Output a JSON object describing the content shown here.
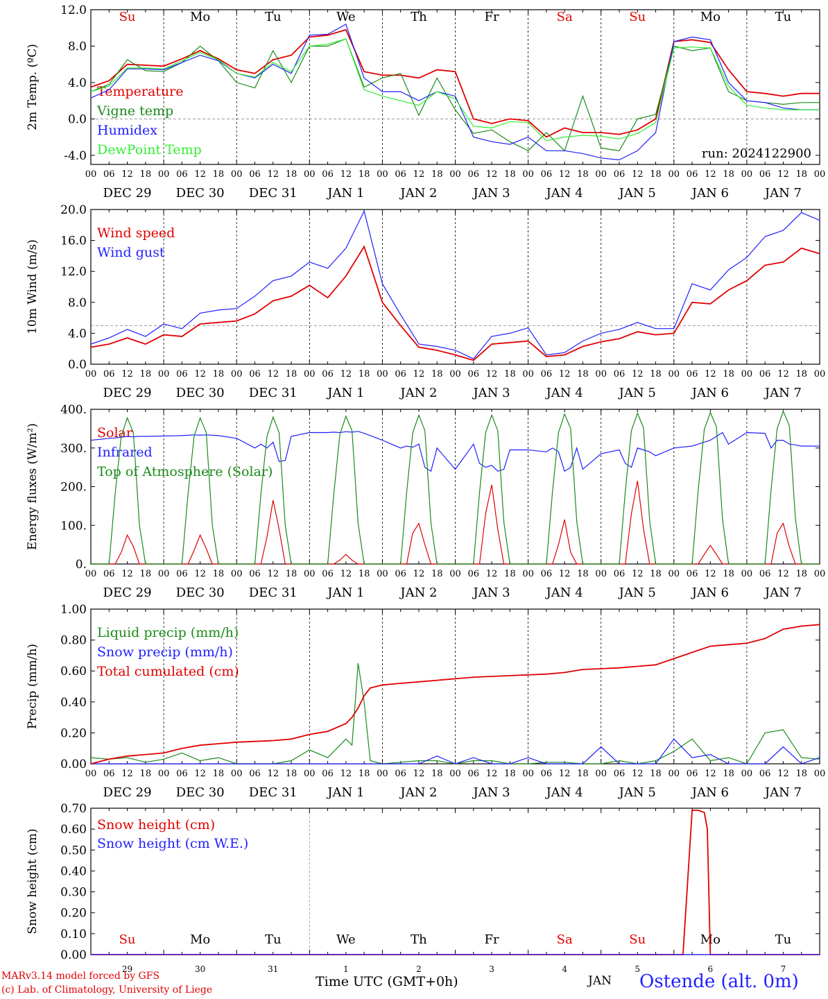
{
  "chart_data": [
    {
      "type": "line",
      "ylabel": "2m Temp. (ºC)",
      "ylim": [
        -5.0,
        12.0
      ],
      "yticks": [
        "12.0",
        "8.0",
        "4.0",
        "0.0",
        "-4.0"
      ],
      "ytick_values": [
        12,
        8,
        4,
        0,
        -4
      ],
      "reference_line": 0,
      "annotation": "run: 2024122900",
      "weekday_labels": [
        "Su",
        "Mo",
        "Tu",
        "We",
        "Th",
        "Fr",
        "Sa",
        "Su",
        "Mo",
        "Tu"
      ],
      "weekday_colors": [
        "#e00000",
        "#000000",
        "#000000",
        "#000000",
        "#000000",
        "#000000",
        "#e00000",
        "#e00000",
        "#000000",
        "#000000"
      ],
      "x_hours": [
        0,
        6,
        12,
        18,
        24,
        30,
        36,
        42,
        48,
        54,
        60,
        66,
        72,
        78,
        84,
        90,
        96,
        102,
        108,
        114,
        120,
        126,
        132,
        138,
        144,
        150,
        156,
        162,
        168,
        174,
        180,
        186,
        192,
        198,
        204,
        210,
        216,
        222,
        228,
        234,
        240
      ],
      "series": [
        {
          "name": "Temperature",
          "color": "#e00000",
          "values": [
            3.5,
            4.2,
            6.0,
            5.9,
            5.8,
            6.6,
            7.5,
            6.6,
            5.4,
            5.0,
            6.5,
            7.0,
            9.0,
            9.2,
            9.8,
            5.2,
            4.8,
            4.8,
            4.5,
            5.4,
            5.2,
            0.0,
            -0.5,
            0.0,
            -0.2,
            -2.0,
            -1.0,
            -1.5,
            -1.5,
            -1.7,
            -1.2,
            0.0,
            8.5,
            8.7,
            8.4,
            5.4,
            3.0,
            2.8,
            2.5,
            2.8,
            2.8
          ]
        },
        {
          "name": "Vigne temp",
          "color": "#1a8a1a",
          "values": [
            3.0,
            3.8,
            6.5,
            5.3,
            5.2,
            6.2,
            8.0,
            6.4,
            4.0,
            3.4,
            7.5,
            4.0,
            8.0,
            8.0,
            8.8,
            3.5,
            4.5,
            5.0,
            0.4,
            4.5,
            1.0,
            -1.6,
            -1.2,
            -2.5,
            -3.5,
            -1.5,
            -3.5,
            2.5,
            -3.2,
            -3.5,
            0.0,
            0.5,
            8.0,
            7.5,
            7.8,
            3.0,
            2.0,
            1.8,
            1.6,
            1.8,
            1.8
          ]
        },
        {
          "name": "Humidex",
          "color": "#1f1fff",
          "values": [
            2.3,
            3.2,
            5.5,
            5.5,
            5.4,
            6.2,
            7.0,
            6.4,
            5.0,
            4.5,
            6.0,
            5.0,
            9.2,
            9.3,
            10.4,
            4.5,
            3.0,
            3.0,
            2.0,
            3.0,
            2.5,
            -2.0,
            -2.5,
            -2.8,
            -2.0,
            -3.5,
            -3.5,
            -3.8,
            -4.3,
            -4.5,
            -3.5,
            -1.5,
            8.5,
            9.0,
            8.7,
            4.0,
            2.0,
            1.8,
            1.2,
            1.0,
            1.0
          ]
        },
        {
          "name": "DewPoint Temp",
          "color": "#33ee33",
          "values": [
            3.0,
            3.6,
            5.6,
            5.6,
            5.5,
            6.4,
            7.3,
            6.5,
            5.0,
            4.6,
            6.2,
            5.2,
            8.0,
            8.2,
            8.8,
            3.2,
            2.5,
            2.0,
            1.5,
            3.0,
            2.2,
            -0.8,
            -1.0,
            -0.3,
            -0.4,
            -2.4,
            -2.0,
            -1.8,
            -1.9,
            -2.2,
            -1.6,
            -0.4,
            7.8,
            7.9,
            7.8,
            3.6,
            1.5,
            1.2,
            1.0,
            1.0,
            1.0
          ]
        }
      ]
    },
    {
      "type": "line",
      "ylabel": "10m Wind (m/s)",
      "ylim": [
        0.0,
        20.0
      ],
      "yticks": [
        "20.0",
        "16.0",
        "12.0",
        "8.0",
        "4.0",
        "0.0"
      ],
      "ytick_values": [
        20,
        16,
        12,
        8,
        4,
        0
      ],
      "reference_line": 5,
      "x_hours": [
        0,
        6,
        12,
        18,
        24,
        30,
        36,
        42,
        48,
        54,
        60,
        66,
        72,
        78,
        84,
        90,
        96,
        102,
        108,
        114,
        120,
        126,
        132,
        138,
        144,
        150,
        156,
        162,
        168,
        174,
        180,
        186,
        192,
        198,
        204,
        210,
        216,
        222,
        228,
        234,
        240
      ],
      "series": [
        {
          "name": "Wind speed",
          "color": "#e00000",
          "values": [
            2.2,
            2.6,
            3.4,
            2.6,
            3.8,
            3.6,
            5.2,
            5.4,
            5.6,
            6.5,
            8.2,
            8.8,
            10.2,
            8.6,
            11.4,
            15.2,
            8.0,
            5.0,
            2.2,
            1.8,
            1.2,
            0.5,
            2.6,
            2.8,
            3.0,
            1.0,
            1.2,
            2.3,
            2.9,
            3.3,
            4.2,
            3.8,
            4.0,
            8.0,
            7.8,
            9.6,
            10.8,
            12.8,
            13.2,
            15.0,
            14.3
          ]
        },
        {
          "name": "Wind gust",
          "color": "#1f1fff",
          "values": [
            2.6,
            3.4,
            4.5,
            3.6,
            5.2,
            4.6,
            6.6,
            7.0,
            7.2,
            8.8,
            10.8,
            11.4,
            13.2,
            12.4,
            15.0,
            19.8,
            10.4,
            6.4,
            2.6,
            2.3,
            1.8,
            0.7,
            3.6,
            4.0,
            4.7,
            1.2,
            1.5,
            3.0,
            4.0,
            4.5,
            5.4,
            4.6,
            4.6,
            10.4,
            9.6,
            12.2,
            13.8,
            16.5,
            17.3,
            19.6,
            18.6
          ]
        }
      ]
    },
    {
      "type": "line",
      "ylabel": "Energy fluxes (W/m²)",
      "ylim": [
        0,
        400
      ],
      "yticks": [
        "400.",
        "300.",
        "200.",
        "100.",
        "0."
      ],
      "ytick_values": [
        400,
        300,
        200,
        100,
        0
      ],
      "x_hours": [
        0,
        6,
        8,
        10,
        12,
        14,
        16,
        18,
        24,
        30,
        32,
        34,
        36,
        38,
        40,
        42,
        48,
        54,
        56,
        58,
        60,
        62,
        64,
        66,
        72,
        78,
        80,
        82,
        84,
        86,
        88,
        90,
        96,
        102,
        104,
        106,
        108,
        110,
        112,
        114,
        120,
        126,
        128,
        130,
        132,
        134,
        136,
        138,
        144,
        150,
        152,
        154,
        156,
        158,
        160,
        162,
        168,
        174,
        176,
        178,
        180,
        182,
        184,
        186,
        192,
        198,
        200,
        202,
        204,
        206,
        208,
        210,
        216,
        222,
        224,
        226,
        228,
        230,
        232,
        234,
        240
      ],
      "series": [
        {
          "name": "Solar",
          "color": "#e00000",
          "values": [
            0,
            0,
            0,
            30,
            75,
            45,
            0,
            0,
            0,
            0,
            0,
            35,
            75,
            40,
            0,
            0,
            0,
            0,
            0,
            70,
            165,
            90,
            0,
            0,
            0,
            0,
            0,
            10,
            25,
            10,
            0,
            0,
            0,
            0,
            0,
            80,
            105,
            50,
            0,
            0,
            0,
            0,
            0,
            130,
            205,
            90,
            0,
            0,
            0,
            0,
            0,
            50,
            115,
            30,
            0,
            0,
            0,
            0,
            0,
            130,
            215,
            90,
            0,
            0,
            0,
            0,
            0,
            25,
            48,
            25,
            0,
            0,
            0,
            0,
            0,
            80,
            105,
            45,
            0,
            0,
            0
          ]
        },
        {
          "name": "Infrared",
          "color": "#1f1fff",
          "values": [
            320,
            325,
            326,
            328,
            330,
            329,
            330,
            330,
            331,
            332,
            333,
            334,
            333,
            334,
            333,
            332,
            325,
            300,
            310,
            300,
            315,
            265,
            268,
            330,
            340,
            340,
            341,
            340,
            342,
            341,
            343,
            338,
            320,
            300,
            305,
            302,
            310,
            250,
            240,
            300,
            245,
            310,
            260,
            250,
            255,
            240,
            245,
            295,
            295,
            290,
            300,
            290,
            240,
            250,
            300,
            245,
            285,
            295,
            260,
            250,
            300,
            295,
            290,
            280,
            300,
            305,
            310,
            315,
            320,
            330,
            340,
            310,
            340,
            338,
            300,
            320,
            320,
            310,
            308,
            305,
            305
          ]
        },
        {
          "name": "Top of Atmosphere (Solar)",
          "color": "#1a8a1a",
          "values": [
            0,
            0,
            180,
            330,
            378,
            340,
            100,
            0,
            0,
            0,
            180,
            330,
            378,
            340,
            100,
            0,
            0,
            0,
            180,
            330,
            380,
            340,
            100,
            0,
            0,
            0,
            180,
            335,
            382,
            345,
            105,
            0,
            0,
            0,
            185,
            340,
            385,
            345,
            105,
            0,
            0,
            0,
            185,
            340,
            385,
            345,
            108,
            0,
            0,
            0,
            185,
            340,
            388,
            350,
            110,
            0,
            0,
            0,
            188,
            345,
            390,
            352,
            112,
            0,
            0,
            0,
            190,
            348,
            392,
            355,
            115,
            0,
            0,
            0,
            192,
            350,
            395,
            358,
            118,
            0,
            0
          ]
        }
      ]
    },
    {
      "type": "line",
      "ylabel": "Precip (mm/h)",
      "ylim": [
        0.0,
        1.0
      ],
      "yticks": [
        "1.00",
        "0.80",
        "0.60",
        "0.40",
        "0.20",
        "0.00"
      ],
      "ytick_values": [
        1.0,
        0.8,
        0.6,
        0.4,
        0.2,
        0.0
      ],
      "x_hours": [
        0,
        6,
        12,
        18,
        24,
        30,
        36,
        42,
        48,
        54,
        60,
        66,
        72,
        78,
        84,
        86,
        88,
        90,
        92,
        96,
        102,
        108,
        114,
        120,
        126,
        132,
        138,
        144,
        150,
        156,
        162,
        168,
        174,
        180,
        186,
        192,
        198,
        204,
        210,
        216,
        222,
        228,
        234,
        240
      ],
      "series": [
        {
          "name": "Liquid precip (mm/h)",
          "color": "#1a8a1a",
          "values": [
            0.04,
            0.03,
            0.04,
            0.01,
            0.03,
            0.07,
            0.02,
            0.04,
            0.0,
            0.0,
            0.0,
            0.02,
            0.09,
            0.04,
            0.16,
            0.12,
            0.65,
            0.4,
            0.02,
            0.0,
            0.01,
            0.02,
            0.02,
            0.0,
            0.02,
            0.02,
            0.0,
            0.0,
            0.01,
            0.01,
            0.0,
            0.0,
            0.02,
            0.0,
            0.02,
            0.08,
            0.16,
            0.02,
            0.04,
            0.0,
            0.2,
            0.22,
            0.04,
            0.03
          ]
        },
        {
          "name": "Snow precip (mm/h)",
          "color": "#1f1fff",
          "values": [
            0.0,
            0.0,
            0.0,
            0.0,
            0.0,
            0.0,
            0.0,
            0.0,
            0.0,
            0.0,
            0.0,
            0.0,
            0.0,
            0.0,
            0.0,
            0.0,
            0.0,
            0.0,
            0.0,
            0.0,
            0.0,
            0.0,
            0.05,
            0.0,
            0.04,
            0.0,
            0.0,
            0.04,
            0.0,
            0.0,
            0.0,
            0.11,
            0.0,
            0.0,
            0.0,
            0.16,
            0.04,
            0.06,
            0.0,
            0.0,
            0.0,
            0.11,
            0.0,
            0.04
          ]
        },
        {
          "name": "Total cumulated (cm)",
          "color": "#e00000",
          "values": [
            0.0,
            0.03,
            0.05,
            0.06,
            0.07,
            0.1,
            0.12,
            0.13,
            0.14,
            0.145,
            0.15,
            0.16,
            0.19,
            0.21,
            0.26,
            0.3,
            0.36,
            0.44,
            0.49,
            0.51,
            0.52,
            0.53,
            0.54,
            0.55,
            0.56,
            0.565,
            0.57,
            0.575,
            0.58,
            0.59,
            0.61,
            0.615,
            0.62,
            0.63,
            0.64,
            0.68,
            0.72,
            0.76,
            0.77,
            0.78,
            0.81,
            0.87,
            0.89,
            0.9
          ]
        }
      ]
    },
    {
      "type": "line",
      "ylabel": "Snow height (cm)",
      "ylim": [
        0.0,
        0.7
      ],
      "yticks": [
        "0.70",
        "0.60",
        "0.50",
        "0.40",
        "0.30",
        "0.20",
        "0.10",
        "0.00"
      ],
      "ytick_values": [
        0.7,
        0.6,
        0.5,
        0.4,
        0.3,
        0.2,
        0.1,
        0.0
      ],
      "x_hours": [
        0,
        150,
        195,
        198,
        200,
        202,
        203,
        204,
        210,
        240
      ],
      "series": [
        {
          "name": "Snow height (cm)",
          "color": "#e00000",
          "values": [
            0.0,
            0.0,
            0.0,
            0.69,
            0.69,
            0.68,
            0.6,
            0.0,
            0.0,
            0.0
          ]
        },
        {
          "name": "Snow height (cm W.E.)",
          "color": "#1f1fff",
          "values": [
            0.0,
            0.0,
            0.0,
            0.0,
            0.0,
            0.0,
            0.0,
            0.0,
            0.0,
            0.0
          ]
        }
      ]
    }
  ],
  "axes": {
    "hour_ticks": [
      "00",
      "06",
      "12",
      "18"
    ],
    "hour_end": "00",
    "date_labels": [
      "DEC 29",
      "DEC 30",
      "DEC 31",
      "JAN 1",
      "JAN 2",
      "JAN 3",
      "JAN 4",
      "JAN 5",
      "JAN 6",
      "JAN 7"
    ],
    "day_numbers": [
      "29",
      "30",
      "31",
      "1",
      "2",
      "3",
      "4",
      "5",
      "6",
      "7"
    ]
  },
  "footer": {
    "credit_line1": "MARv3.14 model forced by GFS",
    "credit_line2": "(c) Lab. of Climatology, University of Liege",
    "xlabel": "Time UTC (GMT+0h)",
    "month": "JAN",
    "station": "Ostende (alt. 0m)"
  },
  "colors": {
    "red": "#e00000",
    "green": "#1a8a1a",
    "blue": "#1f1fff",
    "light_green": "#33ee33",
    "dashed_grid": "#000000"
  }
}
